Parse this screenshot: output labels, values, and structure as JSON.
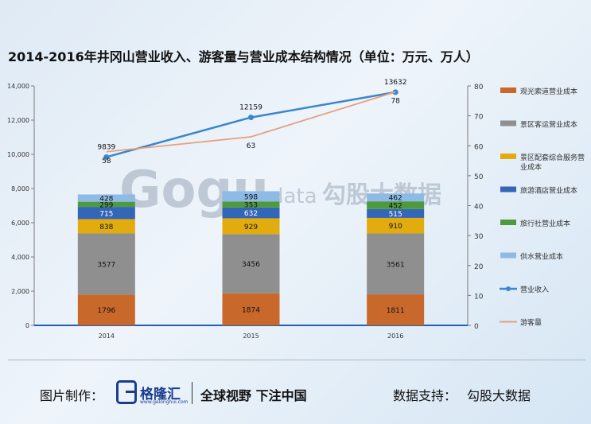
{
  "title": "2014-2016年井冈山营业收入、游客量与营业成本结构情况（单位：万元、万人）",
  "watermark": {
    "text": "数据",
    "brand": "Gogu",
    "suffix": "data",
    "cn": "勾股大数据"
  },
  "footer": {
    "made_by_label": "图片制作：",
    "logo_name": "格隆汇",
    "logo_url": "www.gelonghui.com",
    "slogan": "全球视野 下注中国",
    "support_label": "数据支持：",
    "support_name": "勾股大数据"
  },
  "chart_data": {
    "type": "bar",
    "categories": [
      "2014",
      "2015",
      "2016"
    ],
    "stack_order": [
      "观光索道营业成本",
      "景区客运营业成本",
      "景区配套综合服务营业成本",
      "旅游酒店营业成本",
      "旅行社营业成本",
      "供水营业成本"
    ],
    "series": [
      {
        "name": "观光索道营业成本",
        "type": "bar",
        "axis": "left",
        "color": "#c8692b",
        "label_color": "#111111",
        "values": [
          1796,
          1874,
          1811
        ]
      },
      {
        "name": "景区客运营业成本",
        "type": "bar",
        "axis": "left",
        "color": "#8f8f8f",
        "label_color": "#111111",
        "values": [
          3577,
          3456,
          3561
        ]
      },
      {
        "name": "景区配套综合服务营业成本",
        "type": "bar",
        "axis": "left",
        "color": "#e2ac0f",
        "label_color": "#111111",
        "values": [
          838,
          929,
          910
        ]
      },
      {
        "name": "旅游酒店营业成本",
        "type": "bar",
        "axis": "left",
        "color": "#3466b8",
        "label_color": "#ffffff",
        "values": [
          715,
          632,
          515
        ]
      },
      {
        "name": "旅行社营业成本",
        "type": "bar",
        "axis": "left",
        "color": "#4f9a3e",
        "label_color": "#111111",
        "values": [
          299,
          353,
          452
        ]
      },
      {
        "name": "供水营业成本",
        "type": "bar",
        "axis": "left",
        "color": "#8dbbe6",
        "label_color": "#111111",
        "values": [
          428,
          598,
          462
        ]
      },
      {
        "name": "营业收入",
        "type": "line",
        "axis": "left",
        "color": "#3c86cc",
        "markers": true,
        "values": [
          9839,
          12159,
          13632
        ]
      },
      {
        "name": "游客量",
        "type": "line",
        "axis": "right",
        "color": "#e8a07d",
        "markers": false,
        "values": [
          58,
          63,
          78
        ]
      }
    ],
    "y_left": {
      "min": 0,
      "max": 14000,
      "ticks": [
        "0",
        "2,000",
        "4,000",
        "6,000",
        "8,000",
        "10,000",
        "12,000",
        "14,000"
      ]
    },
    "y_right": {
      "min": 0,
      "max": 80,
      "ticks": [
        "0",
        "10",
        "20",
        "30",
        "40",
        "50",
        "60",
        "70",
        "80"
      ]
    },
    "legend": {
      "placement": "right",
      "items": [
        {
          "label": "观光索道营业成本",
          "kind": "rect",
          "color": "#c8692b"
        },
        {
          "label": "景区客运营业成本",
          "kind": "rect",
          "color": "#8f8f8f"
        },
        {
          "label": "景区配套综合服务营",
          "label2": "业成本",
          "kind": "rect",
          "color": "#e2ac0f"
        },
        {
          "label": "旅游酒店营业成本",
          "kind": "rect",
          "color": "#3466b8"
        },
        {
          "label": "旅行社营业成本",
          "kind": "rect",
          "color": "#4f9a3e"
        },
        {
          "label": "供水营业成本",
          "kind": "rect",
          "color": "#8dbbe6"
        },
        {
          "label": "营业收入",
          "kind": "line-marker",
          "color": "#3c86cc"
        },
        {
          "label": "游客量",
          "kind": "line",
          "color": "#e8a07d"
        }
      ]
    },
    "grid": false
  }
}
